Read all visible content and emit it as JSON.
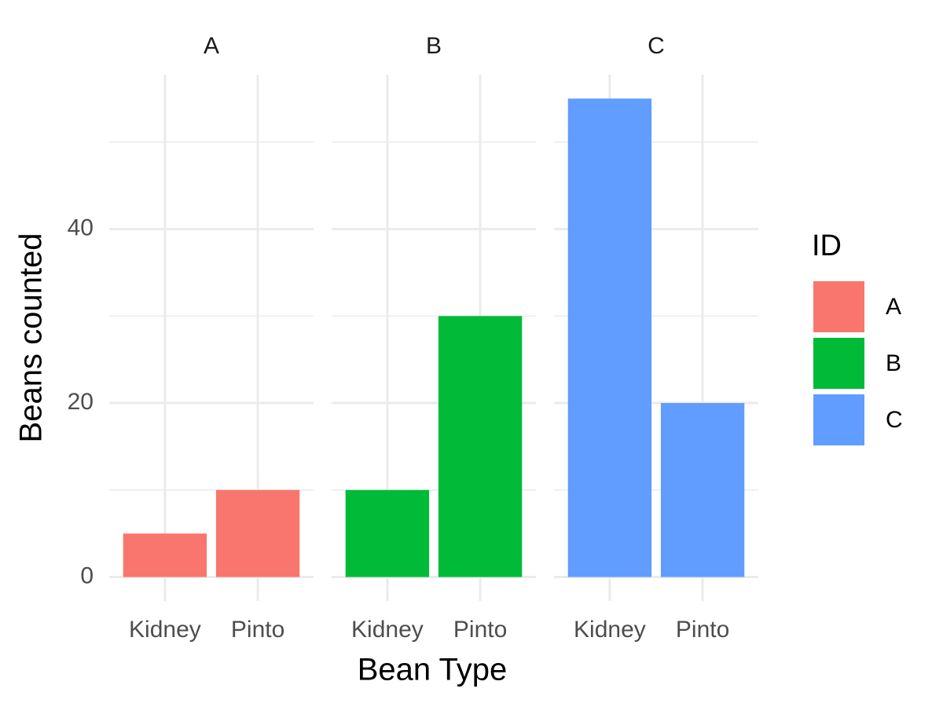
{
  "chart_data": {
    "type": "bar",
    "x_label": "Bean Type",
    "y_label": "Beans counted",
    "legend_title": "ID",
    "categories": [
      "Kidney",
      "Pinto"
    ],
    "series": [
      {
        "name": "A",
        "color": "#F8766D",
        "values": [
          5,
          10
        ]
      },
      {
        "name": "B",
        "color": "#00BA38",
        "values": [
          10,
          30
        ]
      },
      {
        "name": "C",
        "color": "#619CFF",
        "values": [
          55,
          20
        ]
      }
    ],
    "ylim": [
      -2.75,
      57.75
    ],
    "yticks": [
      0,
      20,
      40
    ],
    "minor_yticks": [
      10,
      30,
      50
    ],
    "grid": true
  }
}
